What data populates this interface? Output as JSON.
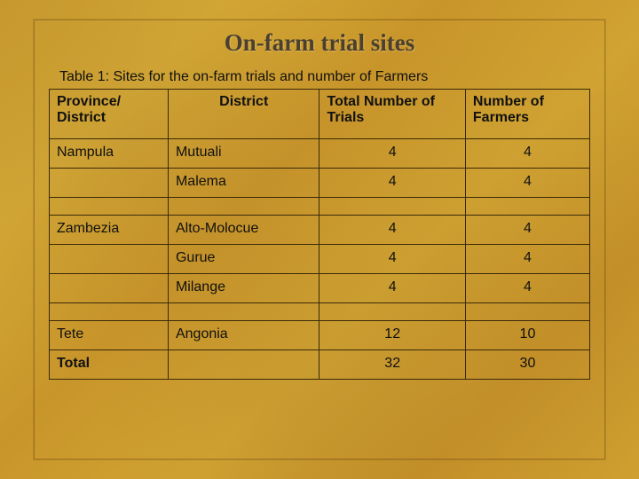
{
  "title": "On-farm trial sites",
  "caption": "Table 1: Sites for the on-farm trials and number of Farmers",
  "columns": {
    "province": "Province/ District",
    "district": "District",
    "trials": "Total Number of  Trials",
    "farmers": "Number of Farmers"
  },
  "rows": [
    {
      "province": "Nampula",
      "district": "Mutuali",
      "trials": "4",
      "farmers": "4"
    },
    {
      "province": "",
      "district": "Malema",
      "trials": "4",
      "farmers": "4"
    },
    {
      "spacer": true
    },
    {
      "province": "Zambezia",
      "district": "Alto-Molocue",
      "trials": "4",
      "farmers": "4"
    },
    {
      "province": "",
      "district": "Gurue",
      "trials": "4",
      "farmers": "4"
    },
    {
      "province": "",
      "district": "Milange",
      "trials": "4",
      "farmers": "4"
    },
    {
      "spacer": true
    },
    {
      "province": "Tete",
      "district": "Angonia",
      "trials": "12",
      "farmers": "10"
    },
    {
      "province": "Total",
      "district": "",
      "trials": "32",
      "farmers": "30",
      "bold": true
    }
  ],
  "style": {
    "background_base": "#c8982e",
    "border_color": "#3a2a0a",
    "title_color": "#4a4030",
    "title_fontsize_pt": 20,
    "caption_fontsize_pt": 12,
    "cell_fontsize_pt": 12,
    "col_widths_pct": [
      22,
      28,
      27,
      23
    ]
  }
}
